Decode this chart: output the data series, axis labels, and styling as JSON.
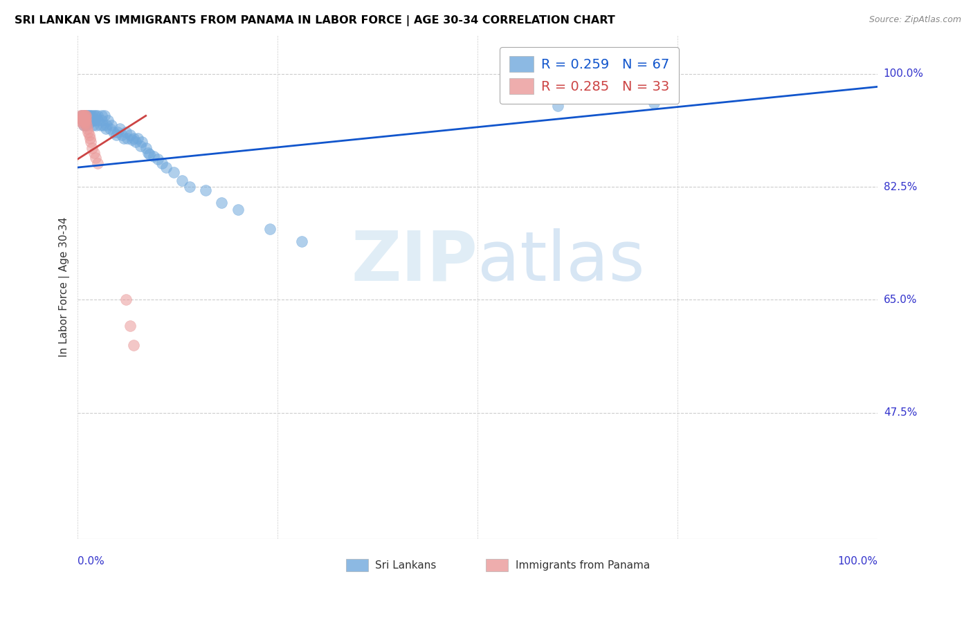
{
  "title": "SRI LANKAN VS IMMIGRANTS FROM PANAMA IN LABOR FORCE | AGE 30-34 CORRELATION CHART",
  "source": "Source: ZipAtlas.com",
  "ylabel": "In Labor Force | Age 30-34",
  "ytick_values": [
    0.475,
    0.65,
    0.825,
    1.0
  ],
  "ytick_labels": [
    "47.5%",
    "65.0%",
    "82.5%",
    "100.0%"
  ],
  "xtick_values": [
    0.0,
    0.25,
    0.5,
    0.75,
    1.0
  ],
  "xtick_labels": [
    "0.0%",
    "",
    "",
    "",
    "100.0%"
  ],
  "legend_blue_r": "0.259",
  "legend_blue_n": "67",
  "legend_pink_r": "0.285",
  "legend_pink_n": "33",
  "watermark_zip": "ZIP",
  "watermark_atlas": "atlas",
  "blue_scatter_x": [
    0.005,
    0.005,
    0.007,
    0.008,
    0.009,
    0.01,
    0.01,
    0.01,
    0.012,
    0.012,
    0.013,
    0.014,
    0.015,
    0.015,
    0.016,
    0.016,
    0.018,
    0.018,
    0.019,
    0.02,
    0.02,
    0.022,
    0.023,
    0.025,
    0.025,
    0.028,
    0.03,
    0.03,
    0.032,
    0.033,
    0.035,
    0.036,
    0.038,
    0.04,
    0.042,
    0.045,
    0.048,
    0.05,
    0.052,
    0.055,
    0.058,
    0.06,
    0.062,
    0.065,
    0.068,
    0.07,
    0.072,
    0.075,
    0.078,
    0.08,
    0.085,
    0.088,
    0.09,
    0.095,
    0.1,
    0.105,
    0.11,
    0.12,
    0.13,
    0.14,
    0.16,
    0.18,
    0.2,
    0.24,
    0.28,
    0.6,
    0.72
  ],
  "blue_scatter_y": [
    0.93,
    0.935,
    0.92,
    0.935,
    0.935,
    0.93,
    0.925,
    0.92,
    0.935,
    0.93,
    0.935,
    0.935,
    0.93,
    0.925,
    0.935,
    0.93,
    0.935,
    0.928,
    0.92,
    0.935,
    0.928,
    0.935,
    0.92,
    0.935,
    0.928,
    0.92,
    0.935,
    0.928,
    0.92,
    0.935,
    0.915,
    0.92,
    0.928,
    0.915,
    0.92,
    0.91,
    0.905,
    0.91,
    0.915,
    0.905,
    0.9,
    0.91,
    0.9,
    0.905,
    0.898,
    0.9,
    0.895,
    0.9,
    0.888,
    0.895,
    0.885,
    0.878,
    0.875,
    0.872,
    0.868,
    0.862,
    0.855,
    0.848,
    0.835,
    0.825,
    0.82,
    0.8,
    0.79,
    0.76,
    0.74,
    0.95,
    0.955
  ],
  "pink_scatter_x": [
    0.003,
    0.004,
    0.004,
    0.005,
    0.005,
    0.005,
    0.006,
    0.006,
    0.007,
    0.007,
    0.007,
    0.008,
    0.008,
    0.008,
    0.008,
    0.009,
    0.009,
    0.01,
    0.01,
    0.01,
    0.011,
    0.012,
    0.013,
    0.014,
    0.015,
    0.016,
    0.018,
    0.02,
    0.022,
    0.025,
    0.06,
    0.065,
    0.07
  ],
  "pink_scatter_y": [
    0.935,
    0.93,
    0.928,
    0.935,
    0.93,
    0.925,
    0.935,
    0.93,
    0.935,
    0.93,
    0.92,
    0.935,
    0.93,
    0.928,
    0.925,
    0.935,
    0.928,
    0.935,
    0.93,
    0.925,
    0.92,
    0.915,
    0.91,
    0.905,
    0.9,
    0.895,
    0.885,
    0.878,
    0.87,
    0.862,
    0.65,
    0.61,
    0.58
  ],
  "blue_trendline_x": [
    0.0,
    1.0
  ],
  "blue_trendline_y": [
    0.855,
    0.98
  ],
  "pink_trendline_x_start": 0.0,
  "pink_trendline_x_end": 0.085,
  "pink_trendline_y_start": 0.868,
  "pink_trendline_y_end": 0.935,
  "blue_color": "#6fa8dc",
  "blue_edge_color": "#6fa8dc",
  "pink_color": "#ea9999",
  "pink_edge_color": "#ea9999",
  "blue_line_color": "#1155cc",
  "pink_line_color": "#cc4444",
  "title_color": "#000000",
  "axis_color": "#3333cc",
  "source_color": "#888888",
  "grid_color": "#cccccc",
  "bg_color": "#ffffff",
  "xlim": [
    0.0,
    1.0
  ],
  "ylim": [
    0.28,
    1.06
  ]
}
